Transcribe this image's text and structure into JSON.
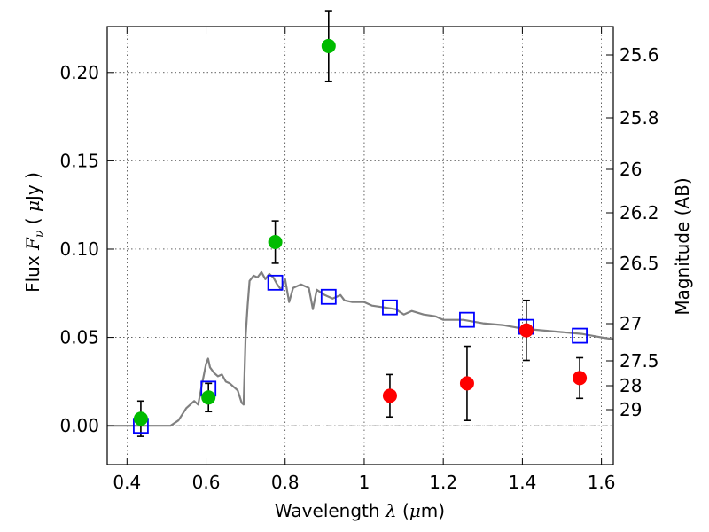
{
  "chart_data": {
    "type": "scatter",
    "xlabel": "Wavelength  λ (μm)",
    "ylabel": "Flux  F_ν  ( μJy )",
    "ylabel_parts": {
      "pre": "Flux  ",
      "F": "F",
      "nu": "ν",
      "open": "  ( ",
      "mu": "μ",
      "unit": "Jy",
      "close": " )"
    },
    "xlabel_parts": {
      "pre": "Wavelength  ",
      "lambda": "λ",
      "open": " (",
      "mu": "μ",
      "unit": "m)"
    },
    "y2label": "Magnitude (AB)",
    "xlim": [
      0.35,
      1.63
    ],
    "ylim": [
      -0.022,
      0.226
    ],
    "grid": true,
    "x_ticks": [
      "0.4",
      "0.6",
      "0.8",
      "1",
      "1.2",
      "1.4",
      "1.6"
    ],
    "y_ticks": [
      "0.00",
      "0.05",
      "0.10",
      "0.15",
      "0.20"
    ],
    "mag_ticks": [
      "25.6",
      "25.8",
      "26",
      "26.2",
      "26.5",
      "27",
      "27.5",
      "28",
      "29"
    ],
    "colors": {
      "green": "#00bb00",
      "red": "#ff0000",
      "model_square": "#0000ff",
      "template": "#808080"
    },
    "series": [
      {
        "marker": "green-circle",
        "points": [
          {
            "x": 0.435,
            "y": 0.004,
            "err": 0.01
          },
          {
            "x": 0.606,
            "y": 0.016,
            "err": 0.008
          },
          {
            "x": 0.775,
            "y": 0.104,
            "err": 0.012
          },
          {
            "x": 0.91,
            "y": 0.215,
            "err": 0.02
          }
        ]
      },
      {
        "marker": "red-circle",
        "points": [
          {
            "x": 1.065,
            "y": 0.017,
            "err": 0.012
          },
          {
            "x": 1.26,
            "y": 0.024,
            "err": 0.021
          },
          {
            "x": 1.41,
            "y": 0.054,
            "err": 0.017
          },
          {
            "x": 1.545,
            "y": 0.027,
            "err": 0.0115
          }
        ]
      },
      {
        "marker": "blue-open-square",
        "points": [
          {
            "x": 0.435,
            "y": 0.0
          },
          {
            "x": 0.606,
            "y": 0.021
          },
          {
            "x": 0.775,
            "y": 0.081
          },
          {
            "x": 0.91,
            "y": 0.073
          },
          {
            "x": 1.065,
            "y": 0.067
          },
          {
            "x": 1.26,
            "y": 0.06
          },
          {
            "x": 1.41,
            "y": 0.056
          },
          {
            "x": 1.545,
            "y": 0.051
          }
        ]
      },
      {
        "marker": "gray-line",
        "points": [
          [
            0.35,
            0.0
          ],
          [
            0.51,
            0.0
          ],
          [
            0.53,
            0.003
          ],
          [
            0.55,
            0.01
          ],
          [
            0.57,
            0.014
          ],
          [
            0.58,
            0.012
          ],
          [
            0.59,
            0.024
          ],
          [
            0.6,
            0.035
          ],
          [
            0.605,
            0.038
          ],
          [
            0.61,
            0.033
          ],
          [
            0.62,
            0.03
          ],
          [
            0.63,
            0.028
          ],
          [
            0.64,
            0.029
          ],
          [
            0.65,
            0.025
          ],
          [
            0.66,
            0.024
          ],
          [
            0.67,
            0.022
          ],
          [
            0.68,
            0.02
          ],
          [
            0.69,
            0.013
          ],
          [
            0.695,
            0.012
          ],
          [
            0.7,
            0.05
          ],
          [
            0.705,
            0.068
          ],
          [
            0.71,
            0.082
          ],
          [
            0.72,
            0.085
          ],
          [
            0.73,
            0.084
          ],
          [
            0.74,
            0.087
          ],
          [
            0.75,
            0.083
          ],
          [
            0.76,
            0.086
          ],
          [
            0.77,
            0.084
          ],
          [
            0.78,
            0.08
          ],
          [
            0.79,
            0.077
          ],
          [
            0.8,
            0.083
          ],
          [
            0.81,
            0.07
          ],
          [
            0.82,
            0.078
          ],
          [
            0.84,
            0.08
          ],
          [
            0.86,
            0.078
          ],
          [
            0.87,
            0.066
          ],
          [
            0.88,
            0.077
          ],
          [
            0.9,
            0.074
          ],
          [
            0.92,
            0.072
          ],
          [
            0.94,
            0.074
          ],
          [
            0.95,
            0.071
          ],
          [
            0.97,
            0.07
          ],
          [
            1.0,
            0.07
          ],
          [
            1.02,
            0.068
          ],
          [
            1.05,
            0.067
          ],
          [
            1.08,
            0.066
          ],
          [
            1.1,
            0.063
          ],
          [
            1.12,
            0.065
          ],
          [
            1.15,
            0.063
          ],
          [
            1.18,
            0.062
          ],
          [
            1.2,
            0.06
          ],
          [
            1.25,
            0.06
          ],
          [
            1.3,
            0.058
          ],
          [
            1.35,
            0.057
          ],
          [
            1.4,
            0.055
          ],
          [
            1.45,
            0.054
          ],
          [
            1.5,
            0.053
          ],
          [
            1.55,
            0.052
          ],
          [
            1.6,
            0.05
          ],
          [
            1.63,
            0.049
          ]
        ]
      }
    ]
  }
}
